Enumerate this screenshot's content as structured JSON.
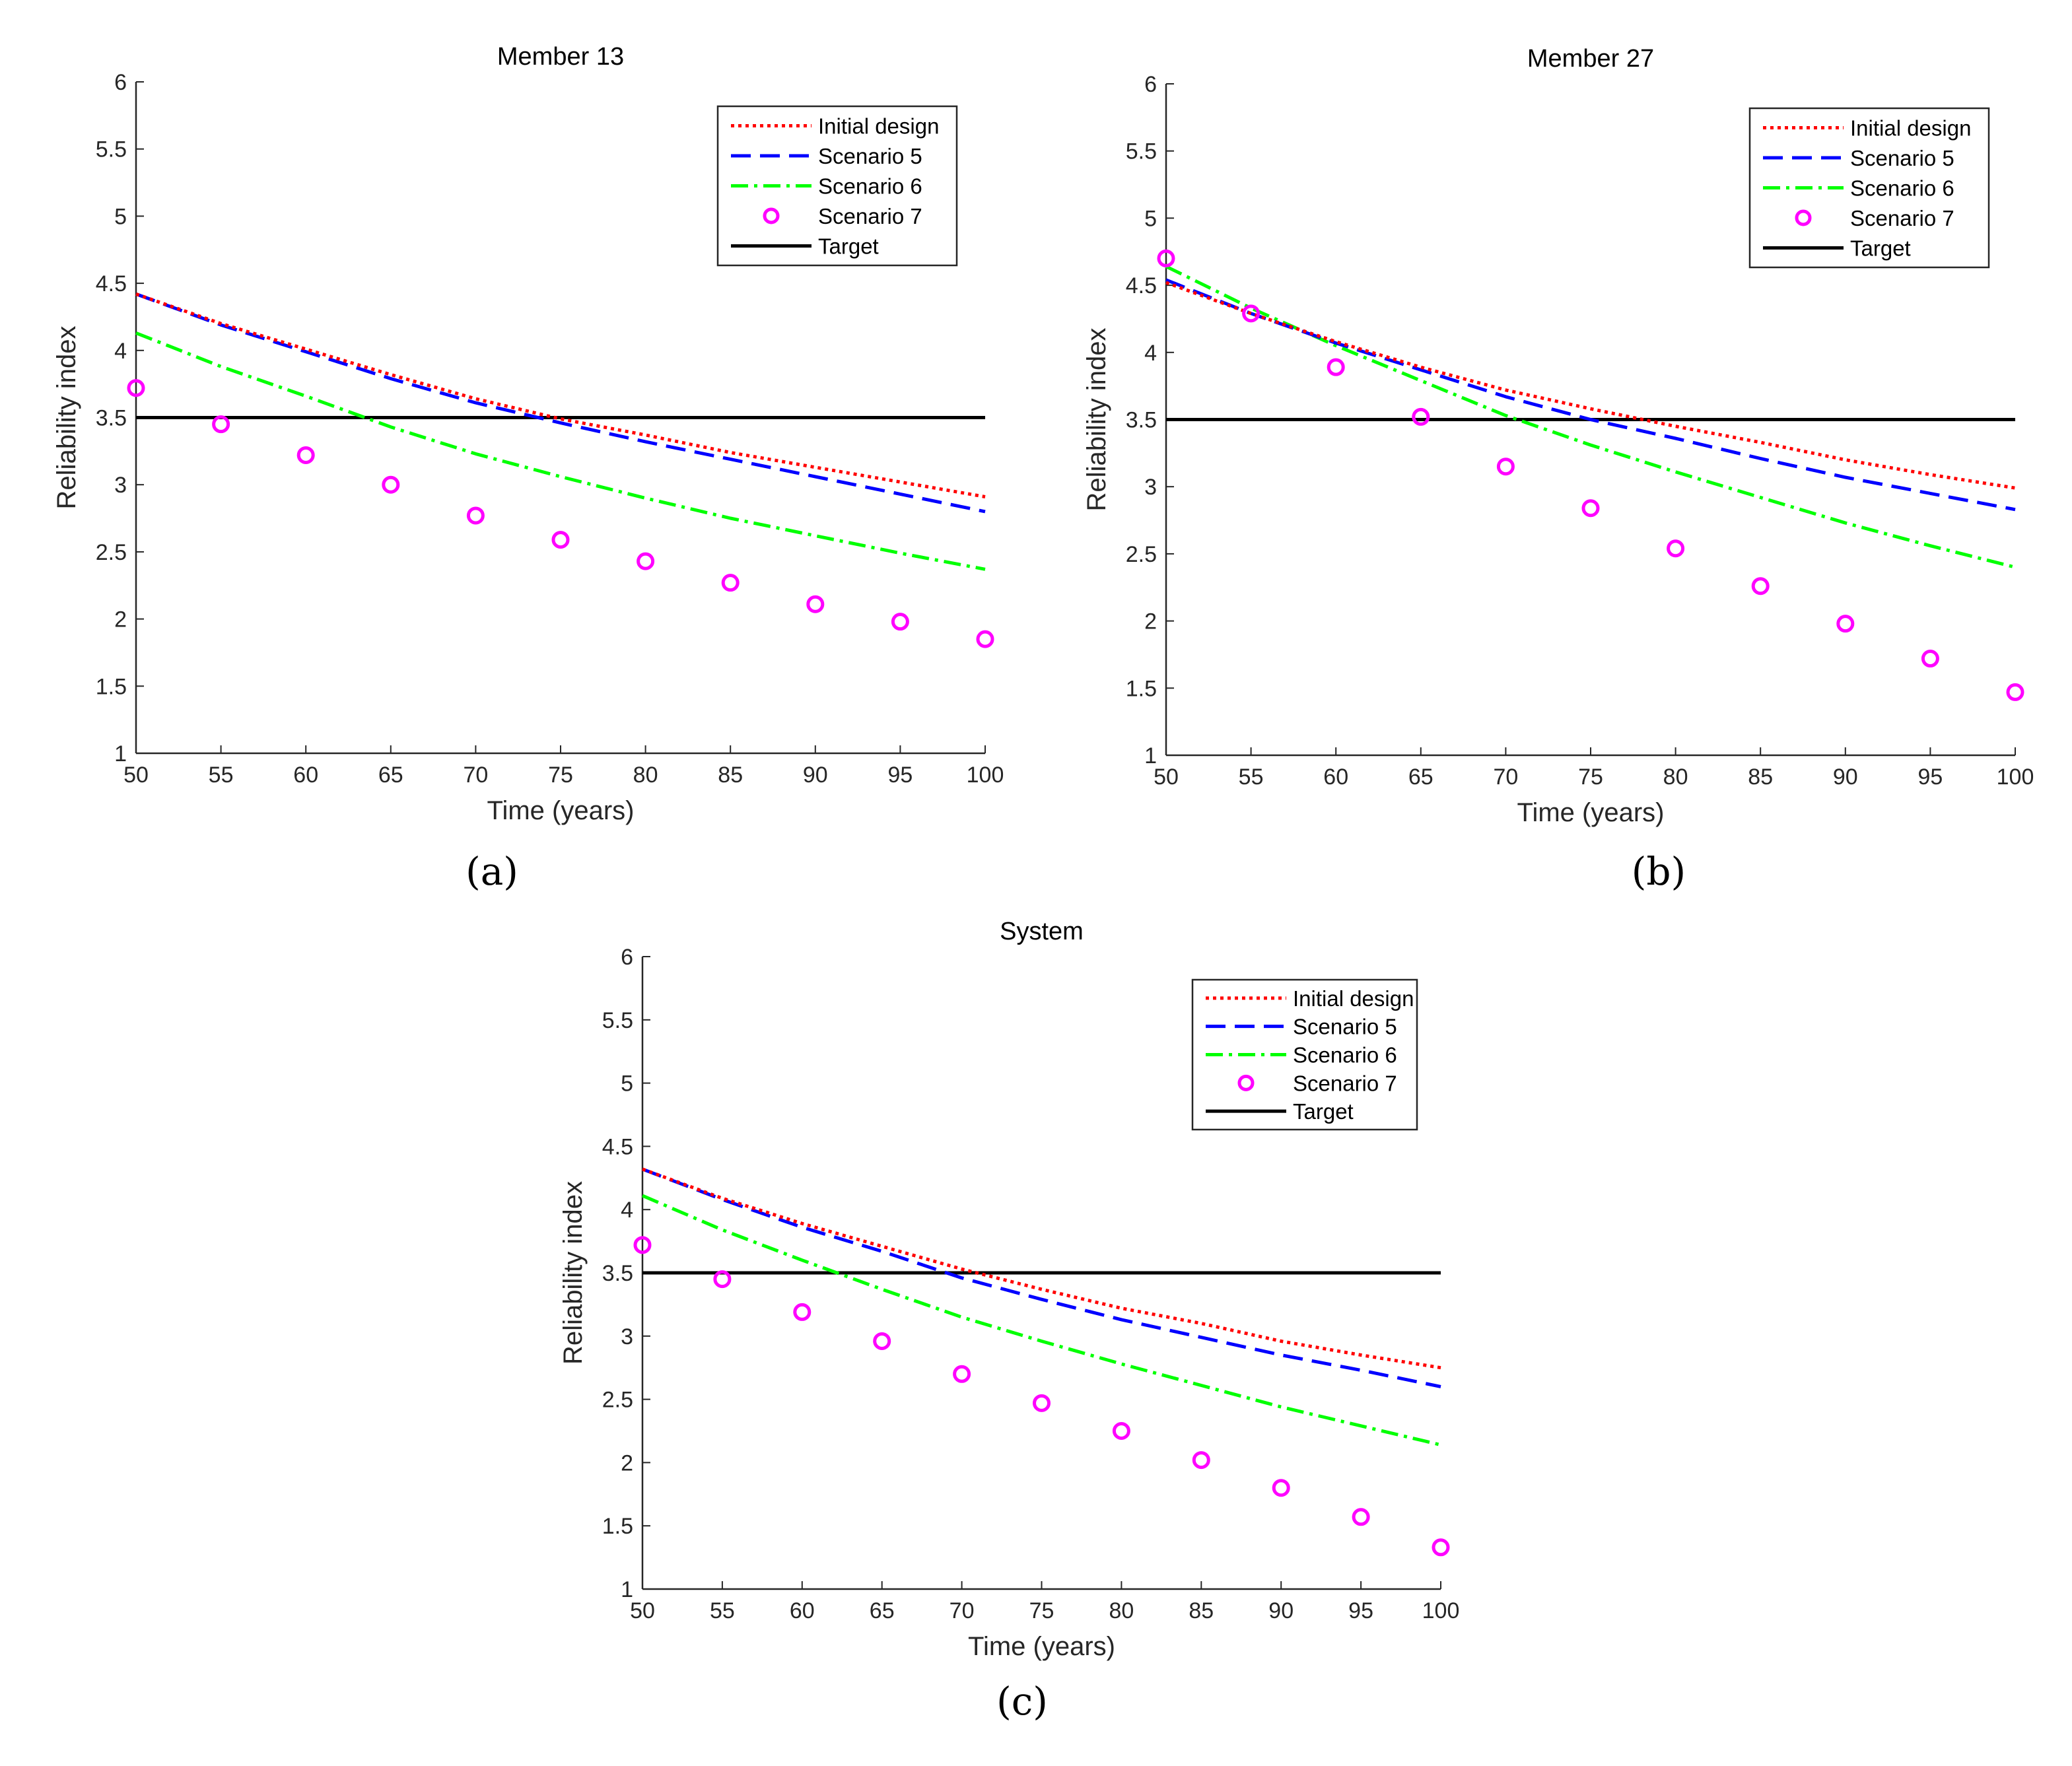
{
  "chart_data": [
    {
      "type": "line",
      "panel_label": "(a)",
      "title": "Member 13",
      "xlabel": "Time (years)",
      "ylabel": "Reliability index",
      "xlim": [
        50,
        100
      ],
      "ylim": [
        1,
        6
      ],
      "xticks": [
        50,
        55,
        60,
        65,
        70,
        75,
        80,
        85,
        90,
        95,
        100
      ],
      "yticks": [
        1,
        1.5,
        2,
        2.5,
        3,
        3.5,
        4,
        4.5,
        5,
        5.5,
        6
      ],
      "legend_position": "top-right",
      "x": [
        50,
        55,
        60,
        65,
        70,
        75,
        80,
        85,
        90,
        95,
        100
      ],
      "series": [
        {
          "name": "Initial design",
          "color": "#ff0000",
          "style": "dotted",
          "values": [
            4.42,
            4.2,
            4.01,
            3.82,
            3.64,
            3.49,
            3.37,
            3.24,
            3.13,
            3.02,
            2.91
          ]
        },
        {
          "name": "Scenario 5",
          "color": "#0000ff",
          "style": "dashed",
          "values": [
            4.42,
            4.19,
            3.99,
            3.79,
            3.61,
            3.46,
            3.32,
            3.19,
            3.06,
            2.93,
            2.8
          ]
        },
        {
          "name": "Scenario 6",
          "color": "#00ff00",
          "style": "dashdot",
          "values": [
            4.13,
            3.88,
            3.66,
            3.43,
            3.23,
            3.06,
            2.9,
            2.75,
            2.62,
            2.49,
            2.37
          ]
        },
        {
          "name": "Scenario 7",
          "color": "#ff00ff",
          "style": "marker",
          "values": [
            3.72,
            3.45,
            3.22,
            3.0,
            2.77,
            2.59,
            2.43,
            2.27,
            2.11,
            1.98,
            1.85
          ]
        },
        {
          "name": "Target",
          "color": "#000000",
          "style": "solid",
          "values": [
            3.5,
            3.5,
            3.5,
            3.5,
            3.5,
            3.5,
            3.5,
            3.5,
            3.5,
            3.5,
            3.5
          ]
        }
      ]
    },
    {
      "type": "line",
      "panel_label": "(b)",
      "title": "Member 27",
      "xlabel": "Time (years)",
      "ylabel": "Reliability index",
      "xlim": [
        50,
        100
      ],
      "ylim": [
        1,
        6
      ],
      "xticks": [
        50,
        55,
        60,
        65,
        70,
        75,
        80,
        85,
        90,
        95,
        100
      ],
      "yticks": [
        1,
        1.5,
        2,
        2.5,
        3,
        3.5,
        4,
        4.5,
        5,
        5.5,
        6
      ],
      "legend_position": "top-right",
      "x": [
        50,
        55,
        60,
        65,
        70,
        75,
        80,
        85,
        90,
        95,
        100
      ],
      "series": [
        {
          "name": "Initial design",
          "color": "#ff0000",
          "style": "dotted",
          "values": [
            4.52,
            4.29,
            4.08,
            3.89,
            3.72,
            3.58,
            3.45,
            3.33,
            3.2,
            3.09,
            2.99
          ]
        },
        {
          "name": "Scenario 5",
          "color": "#0000ff",
          "style": "dashed",
          "values": [
            4.54,
            4.29,
            4.07,
            3.87,
            3.67,
            3.5,
            3.36,
            3.21,
            3.07,
            2.95,
            2.83
          ]
        },
        {
          "name": "Scenario 6",
          "color": "#00ff00",
          "style": "dashdot",
          "values": [
            4.64,
            4.33,
            4.05,
            3.79,
            3.53,
            3.31,
            3.11,
            2.92,
            2.73,
            2.56,
            2.4
          ]
        },
        {
          "name": "Scenario 7",
          "color": "#ff00ff",
          "style": "marker",
          "values": [
            4.7,
            4.29,
            3.89,
            3.52,
            3.15,
            2.84,
            2.54,
            2.26,
            1.98,
            1.72,
            1.47
          ]
        },
        {
          "name": "Target",
          "color": "#000000",
          "style": "solid",
          "values": [
            3.5,
            3.5,
            3.5,
            3.5,
            3.5,
            3.5,
            3.5,
            3.5,
            3.5,
            3.5,
            3.5
          ]
        }
      ]
    },
    {
      "type": "line",
      "panel_label": "(c)",
      "title": "System",
      "xlabel": "Time (years)",
      "ylabel": "Reliability index",
      "xlim": [
        50,
        100
      ],
      "ylim": [
        1,
        6
      ],
      "xticks": [
        50,
        55,
        60,
        65,
        70,
        75,
        80,
        85,
        90,
        95,
        100
      ],
      "yticks": [
        1,
        1.5,
        2,
        2.5,
        3,
        3.5,
        4,
        4.5,
        5,
        5.5,
        6
      ],
      "legend_position": "top-right",
      "x": [
        50,
        55,
        60,
        65,
        70,
        75,
        80,
        85,
        90,
        95,
        100
      ],
      "series": [
        {
          "name": "Initial design",
          "color": "#ff0000",
          "style": "dotted",
          "values": [
            4.32,
            4.09,
            3.89,
            3.71,
            3.53,
            3.37,
            3.22,
            3.1,
            2.96,
            2.85,
            2.75
          ]
        },
        {
          "name": "Scenario 5",
          "color": "#0000ff",
          "style": "dashed",
          "values": [
            4.32,
            4.08,
            3.86,
            3.67,
            3.46,
            3.29,
            3.13,
            2.99,
            2.85,
            2.73,
            2.6
          ]
        },
        {
          "name": "Scenario 6",
          "color": "#00ff00",
          "style": "dashdot",
          "values": [
            4.11,
            3.84,
            3.6,
            3.37,
            3.15,
            2.96,
            2.78,
            2.61,
            2.44,
            2.29,
            2.14
          ]
        },
        {
          "name": "Scenario 7",
          "color": "#ff00ff",
          "style": "marker",
          "values": [
            3.72,
            3.45,
            3.19,
            2.96,
            2.7,
            2.47,
            2.25,
            2.02,
            1.8,
            1.57,
            1.33
          ]
        },
        {
          "name": "Target",
          "color": "#000000",
          "style": "solid",
          "values": [
            3.5,
            3.5,
            3.5,
            3.5,
            3.5,
            3.5,
            3.5,
            3.5,
            3.5,
            3.5,
            3.5
          ]
        }
      ]
    }
  ]
}
